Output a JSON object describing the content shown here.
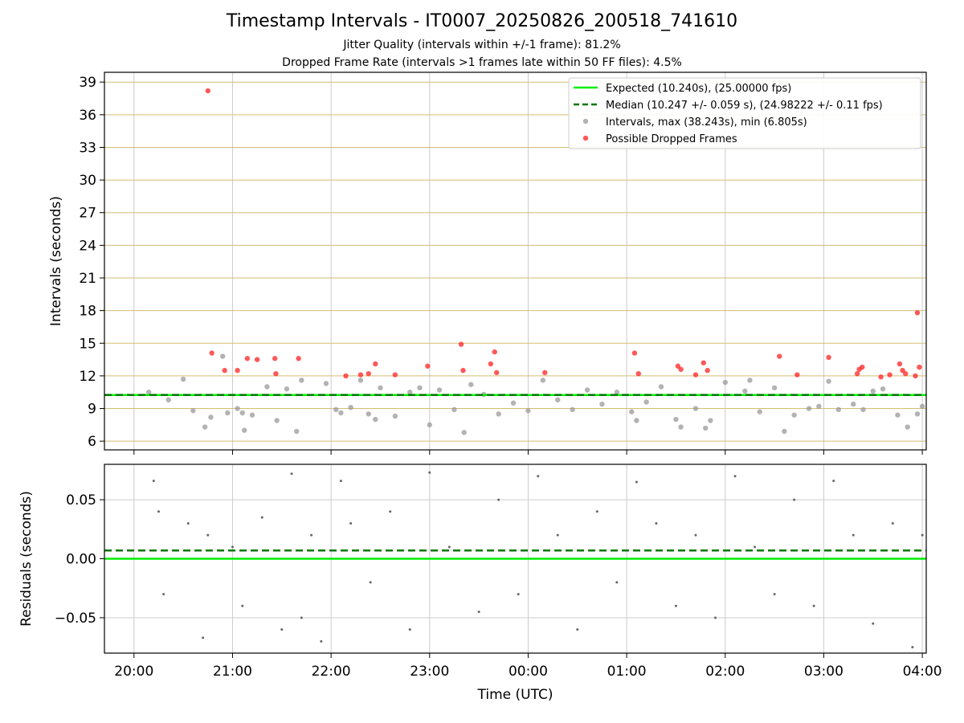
{
  "figure": {
    "title": "Timestamp Intervals - IT0007_20250826_200518_741610",
    "subtitle_1": "Jitter Quality (intervals within +/-1 frame): 81.2%",
    "subtitle_2": "Dropped Frame Rate (intervals >1 frames late within 50 FF files): 4.5%"
  },
  "colors": {
    "expected": "#00ee00",
    "median": "#007700",
    "intervals": "#999999",
    "dropped": "#ff2222",
    "residuals": "#666666",
    "grid_top": "#d4bd74",
    "grid": "#cccccc"
  },
  "chart_data": [
    {
      "type": "scatter",
      "panel": "intervals",
      "ylabel": "Intervals (seconds)",
      "xlabel": "",
      "x_ticks": [
        "20:00",
        "21:00",
        "22:00",
        "23:00",
        "00:00",
        "01:00",
        "02:00",
        "03:00",
        "04:00"
      ],
      "xlim_hours": [
        19.7,
        28.04
      ],
      "ylim": [
        5.2,
        39.9
      ],
      "y_ticks": [
        6,
        9,
        12,
        15,
        18,
        21,
        24,
        27,
        30,
        33,
        36,
        39
      ],
      "grid": true,
      "legend_position": "top-right",
      "legend": [
        "Expected (10.240s), (25.00000 fps)",
        "Median (10.247 +/- 0.059 s), (24.98222 +/- 0.11 fps)",
        "Intervals, max (38.243s), min (6.805s)",
        "Possible Dropped Frames"
      ],
      "expected": 10.24,
      "median": 10.247,
      "series": [
        {
          "name": "Intervals, max (38.243s), min (6.805s)",
          "x_hours": [
            20.15,
            20.35,
            20.5,
            20.6,
            20.72,
            20.78,
            20.9,
            20.95,
            21.05,
            21.1,
            21.12,
            21.2,
            21.35,
            21.45,
            21.55,
            21.65,
            21.7,
            21.95,
            22.05,
            22.1,
            22.2,
            22.3,
            22.38,
            22.45,
            22.5,
            22.65,
            22.8,
            22.9,
            23.0,
            23.1,
            23.25,
            23.35,
            23.42,
            23.55,
            23.7,
            23.85,
            24.0,
            24.15,
            24.3,
            24.45,
            24.6,
            24.75,
            24.9,
            25.05,
            25.1,
            25.2,
            25.35,
            25.5,
            25.55,
            25.7,
            25.8,
            25.85,
            26.0,
            26.2,
            26.25,
            26.35,
            26.5,
            26.6,
            26.7,
            26.85,
            26.95,
            27.05,
            27.15,
            27.3,
            27.4,
            27.5,
            27.6,
            27.75,
            27.85,
            27.95,
            28.0
          ],
          "y": [
            10.5,
            9.8,
            11.7,
            8.8,
            7.3,
            8.2,
            13.8,
            8.6,
            9.0,
            8.6,
            7.0,
            8.4,
            11.0,
            7.9,
            10.8,
            6.9,
            11.6,
            11.3,
            8.9,
            8.6,
            9.1,
            11.6,
            8.5,
            8.0,
            10.9,
            8.3,
            10.5,
            10.9,
            7.5,
            10.7,
            8.9,
            6.8,
            11.2,
            10.3,
            8.5,
            9.5,
            8.8,
            11.6,
            9.8,
            8.9,
            10.7,
            9.4,
            10.5,
            8.7,
            7.9,
            9.6,
            11.0,
            8.0,
            7.3,
            9.0,
            7.2,
            7.9,
            11.4,
            10.6,
            11.6,
            8.7,
            10.9,
            6.9,
            8.4,
            9.0,
            9.2,
            11.5,
            8.9,
            9.4,
            8.9,
            10.6,
            10.8,
            8.4,
            7.3,
            8.5,
            9.2
          ]
        },
        {
          "name": "Possible Dropped Frames",
          "x_hours": [
            20.75,
            20.79,
            20.92,
            21.05,
            21.15,
            21.25,
            21.43,
            21.44,
            21.67,
            22.15,
            22.3,
            22.38,
            22.45,
            22.65,
            22.98,
            23.32,
            23.34,
            23.62,
            23.66,
            23.68,
            24.17,
            25.08,
            25.12,
            25.52,
            25.55,
            25.7,
            25.78,
            25.82,
            26.55,
            26.73,
            27.05,
            27.34,
            27.36,
            27.39,
            27.58,
            27.67,
            27.77,
            27.8,
            27.83,
            27.93,
            27.95,
            27.97
          ],
          "y": [
            38.2,
            14.1,
            12.5,
            12.5,
            13.6,
            13.5,
            13.6,
            12.2,
            13.6,
            12.0,
            12.1,
            12.2,
            13.1,
            12.1,
            12.9,
            14.9,
            12.5,
            13.1,
            14.2,
            12.3,
            12.3,
            14.1,
            12.2,
            12.9,
            12.6,
            12.1,
            13.2,
            12.5,
            13.8,
            12.1,
            13.7,
            12.2,
            12.6,
            12.8,
            11.9,
            12.1,
            13.1,
            12.5,
            12.2,
            12.0,
            17.8,
            12.8
          ]
        }
      ]
    },
    {
      "type": "scatter",
      "panel": "residuals",
      "ylabel": "Residuals (seconds)",
      "xlabel": "Time (UTC)",
      "x_ticks": [
        "20:00",
        "21:00",
        "22:00",
        "23:00",
        "00:00",
        "01:00",
        "02:00",
        "03:00",
        "04:00"
      ],
      "xlim_hours": [
        19.7,
        28.04
      ],
      "ylim": [
        -0.08,
        0.08
      ],
      "y_ticks": [
        "−0.05",
        "0.00",
        "0.05"
      ],
      "y_tick_values": [
        -0.05,
        0.0,
        0.05
      ],
      "grid": true,
      "expected": 0.0,
      "median": 0.007,
      "series": [
        {
          "name": "Residuals",
          "x_hours": [
            20.2,
            20.25,
            20.3,
            20.55,
            20.7,
            20.75,
            21.0,
            21.1,
            21.3,
            21.5,
            21.6,
            21.7,
            21.8,
            21.9,
            22.1,
            22.2,
            22.4,
            22.6,
            22.8,
            23.0,
            23.2,
            23.5,
            23.7,
            23.9,
            24.1,
            24.3,
            24.5,
            24.7,
            24.9,
            25.1,
            25.3,
            25.5,
            25.7,
            25.9,
            26.1,
            26.3,
            26.5,
            26.7,
            26.9,
            27.1,
            27.3,
            27.5,
            27.7,
            27.9,
            28.0
          ],
          "y": [
            0.066,
            0.04,
            -0.03,
            0.03,
            -0.067,
            0.02,
            0.01,
            -0.04,
            0.035,
            -0.06,
            0.072,
            -0.05,
            0.02,
            -0.07,
            0.066,
            0.03,
            -0.02,
            0.04,
            -0.06,
            0.073,
            0.01,
            -0.045,
            0.05,
            -0.03,
            0.07,
            0.02,
            -0.06,
            0.04,
            -0.02,
            0.065,
            0.03,
            -0.04,
            0.02,
            -0.05,
            0.07,
            0.01,
            -0.03,
            0.05,
            -0.04,
            0.066,
            0.02,
            -0.055,
            0.03,
            -0.075,
            0.02
          ]
        }
      ]
    }
  ]
}
